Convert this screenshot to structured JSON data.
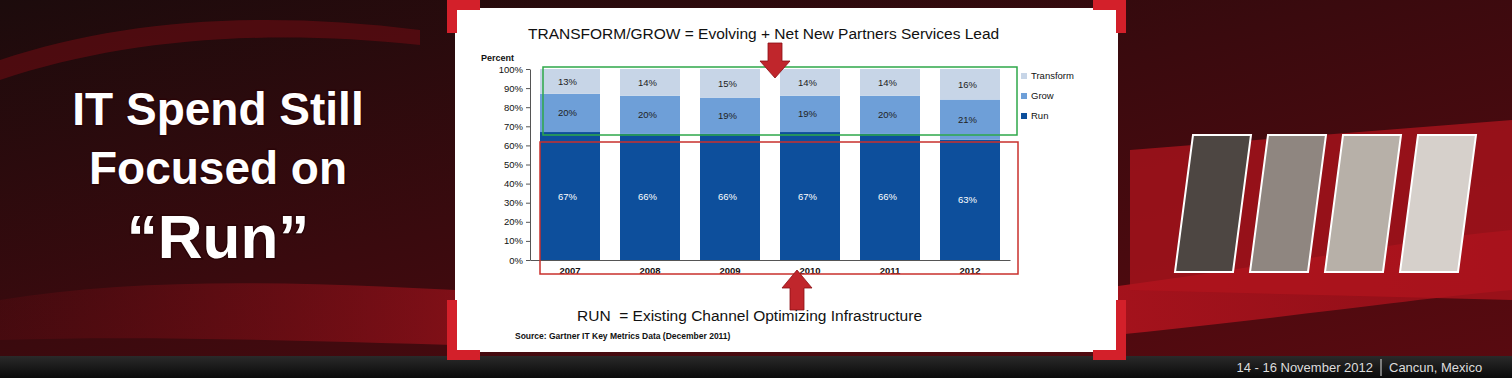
{
  "slide": {
    "heading": [
      "IT Spend Still",
      "Focused on",
      "“Run”"
    ],
    "footer": [
      "14 - 16 November 2012",
      "Cancun, Mexico"
    ]
  },
  "chart_data": {
    "type": "bar",
    "stacked": true,
    "data_labels": true,
    "legend": "right",
    "title": "TRANSFORM/GROW = Evolving + Net New Partners Services Lead",
    "y_label": "Percent",
    "annotations": [
      "RUN  = Existing Channel Optimizing Infrastructure",
      "Source: Gartner IT Key Metrics Data (December 2011)"
    ],
    "categories": [
      "2007",
      "2008",
      "2009",
      "2010",
      "2011",
      "2012"
    ],
    "ylim": [
      0,
      100
    ],
    "yticks": [
      {
        "value": 0,
        "label": "0%"
      },
      {
        "value": 10,
        "label": "10%"
      },
      {
        "value": 20,
        "label": "20%"
      },
      {
        "value": 30,
        "label": "30%"
      },
      {
        "value": 40,
        "label": "40%"
      },
      {
        "value": 50,
        "label": "50%"
      },
      {
        "value": 60,
        "label": "60%"
      },
      {
        "value": 70,
        "label": "70%"
      },
      {
        "value": 80,
        "label": "80%"
      },
      {
        "value": 90,
        "label": "90%"
      },
      {
        "value": 100,
        "label": "100%"
      }
    ],
    "series": [
      {
        "name": "Run",
        "color": "#0d4f9c",
        "values": [
          67,
          66,
          66,
          67,
          66,
          63
        ],
        "value_labels": [
          "67%",
          "66%",
          "66%",
          "67%",
          "66%",
          "63%"
        ]
      },
      {
        "name": "Grow",
        "color": "#6e9fd8",
        "values": [
          20,
          20,
          19,
          19,
          20,
          21
        ],
        "value_labels": [
          "20%",
          "20%",
          "19%",
          "19%",
          "20%",
          "21%"
        ]
      },
      {
        "name": "Transform",
        "color": "#c7d5e7",
        "values": [
          13,
          14,
          15,
          14,
          14,
          16
        ],
        "value_labels": [
          "13%",
          "14%",
          "15%",
          "14%",
          "14%",
          "16%"
        ]
      }
    ]
  }
}
